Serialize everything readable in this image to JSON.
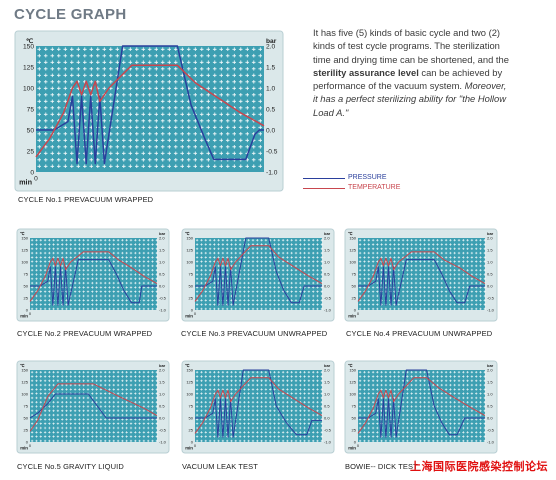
{
  "page": {
    "title": "CYCLE GRAPH",
    "description": [
      {
        "text": "It has five (5) kinds of basic cycle and two (2) kinds of test cycle programs. The sterilization time and drying time can be shortened, and the ",
        "style": "n"
      },
      {
        "text": "sterility assurance level",
        "style": "b"
      },
      {
        "text": " can be achieved by performance of the vacuum system. ",
        "style": "n"
      },
      {
        "text": "Moreover, it has a perfect sterilizing ability for \"the Hollow Load A.\"",
        "style": "i"
      }
    ],
    "watermark": "上海国际医院感染控制论坛"
  },
  "legend": [
    {
      "label": "PRESSURE",
      "color": "#2a3f9c"
    },
    {
      "label": "TEMPERATURE",
      "color": "#c8464e"
    }
  ],
  "chart_data": [
    {
      "type": "line",
      "caption": "CYCLE  No.1 PREVACUUM WRAPPED",
      "y_left_label": "℃",
      "y_right_label": "bar",
      "x_label": "min",
      "x_tick": "0",
      "ylim_left": [
        0,
        150
      ],
      "ylim_right": [
        -1.0,
        2.0
      ],
      "y_left_ticks": [
        0,
        25,
        50,
        75,
        100,
        125,
        150
      ],
      "y_right_ticks": [
        "-1.0",
        "-0.5",
        "0.0",
        "0.5",
        "1.0",
        "1.5",
        "2.0"
      ],
      "grid": true,
      "series": [
        {
          "name": "PRESSURE",
          "axis": "right",
          "x": [
            0,
            8,
            14,
            16,
            18,
            20,
            22,
            24,
            26,
            28,
            30,
            38,
            62,
            68,
            74,
            78,
            82,
            88,
            92,
            96,
            98,
            100
          ],
          "y": [
            0,
            0,
            0.2,
            0.8,
            -0.8,
            0.8,
            -0.8,
            0.8,
            -0.8,
            0.8,
            -0.8,
            2.0,
            2.0,
            0.6,
            -0.2,
            -0.7,
            -0.7,
            -0.7,
            -0.7,
            -0.1,
            0.0,
            0.0
          ]
        },
        {
          "name": "TEMPERATURE",
          "axis": "left",
          "x": [
            0,
            6,
            12,
            16,
            18,
            20,
            22,
            24,
            26,
            28,
            32,
            42,
            62,
            70,
            80,
            90,
            100
          ],
          "y": [
            18,
            40,
            70,
            100,
            108,
            92,
            108,
            92,
            108,
            84,
            100,
            127,
            127,
            106,
            88,
            70,
            55
          ]
        }
      ]
    },
    {
      "type": "line",
      "caption": "CYCLE  No.2 PREVACUUM WRAPPED",
      "y_left_label": "℃",
      "y_right_label": "bar",
      "x_label": "min",
      "x_tick": "0",
      "ylim_left": [
        0,
        150
      ],
      "ylim_right": [
        -1.0,
        2.0
      ],
      "y_left_ticks": [
        0,
        25,
        50,
        75,
        100,
        125,
        150
      ],
      "y_right_ticks": [
        "-1.0",
        "-0.5",
        "0.0",
        "0.5",
        "1.0",
        "1.5",
        "2.0"
      ],
      "grid": true,
      "series": [
        {
          "name": "PRESSURE",
          "axis": "right",
          "x": [
            0,
            8,
            14,
            16,
            18,
            20,
            22,
            24,
            26,
            28,
            30,
            38,
            62,
            68,
            74,
            80,
            86,
            88,
            100
          ],
          "y": [
            0,
            0,
            0.2,
            0.8,
            -0.8,
            0.8,
            -0.8,
            0.8,
            -0.8,
            0.8,
            -0.8,
            1.1,
            1.1,
            0.5,
            -0.2,
            -0.7,
            -0.7,
            0.0,
            0.0
          ]
        },
        {
          "name": "TEMPERATURE",
          "axis": "left",
          "x": [
            0,
            6,
            12,
            16,
            18,
            20,
            22,
            24,
            26,
            28,
            32,
            42,
            62,
            70,
            80,
            90,
            100
          ],
          "y": [
            18,
            40,
            70,
            100,
            108,
            92,
            108,
            92,
            108,
            84,
            100,
            121,
            121,
            104,
            88,
            70,
            55
          ]
        }
      ]
    },
    {
      "type": "line",
      "caption": "CYCLE  No.3 PREVACUUM UNWRAPPED",
      "y_left_label": "℃",
      "y_right_label": "bar",
      "x_label": "min",
      "x_tick": "0",
      "ylim_left": [
        0,
        150
      ],
      "ylim_right": [
        -1.0,
        2.0
      ],
      "y_left_ticks": [
        0,
        25,
        50,
        75,
        100,
        125,
        150
      ],
      "y_right_ticks": [
        "-1.0",
        "-0.5",
        "0.0",
        "0.5",
        "1.0",
        "1.5",
        "2.0"
      ],
      "grid": true,
      "series": [
        {
          "name": "PRESSURE",
          "axis": "right",
          "x": [
            0,
            8,
            14,
            16,
            18,
            20,
            22,
            24,
            26,
            28,
            30,
            40,
            58,
            64,
            70,
            76,
            82,
            86,
            100
          ],
          "y": [
            0,
            0,
            0.2,
            0.8,
            -0.8,
            0.8,
            -0.8,
            0.8,
            -0.8,
            0.8,
            -0.8,
            2.0,
            2.0,
            0.6,
            -0.2,
            -0.7,
            -0.7,
            0.0,
            0.0
          ]
        },
        {
          "name": "TEMPERATURE",
          "axis": "left",
          "x": [
            0,
            6,
            12,
            16,
            18,
            20,
            22,
            24,
            26,
            28,
            32,
            44,
            58,
            66,
            78,
            90,
            100
          ],
          "y": [
            18,
            40,
            70,
            100,
            108,
            92,
            108,
            92,
            108,
            84,
            100,
            134,
            134,
            110,
            90,
            70,
            55
          ]
        }
      ]
    },
    {
      "type": "line",
      "caption": "CYCLE  No.4 PREVACUUM UNWRAPPED",
      "y_left_label": "℃",
      "y_right_label": "bar",
      "x_label": "min",
      "x_tick": "0",
      "ylim_left": [
        0,
        150
      ],
      "ylim_right": [
        -1.0,
        2.0
      ],
      "y_left_ticks": [
        0,
        25,
        50,
        75,
        100,
        125,
        150
      ],
      "y_right_ticks": [
        "-1.0",
        "-0.5",
        "0.0",
        "0.5",
        "1.0",
        "1.5",
        "2.0"
      ],
      "grid": true,
      "series": [
        {
          "name": "PRESSURE",
          "axis": "right",
          "x": [
            0,
            8,
            14,
            16,
            18,
            20,
            22,
            24,
            26,
            28,
            30,
            38,
            60,
            66,
            72,
            78,
            84,
            88,
            100
          ],
          "y": [
            0,
            0,
            0.2,
            0.8,
            -0.8,
            0.8,
            -0.8,
            0.8,
            -0.8,
            0.8,
            -0.8,
            1.1,
            1.1,
            0.5,
            -0.2,
            -0.7,
            -0.7,
            0.0,
            0.0
          ]
        },
        {
          "name": "TEMPERATURE",
          "axis": "left",
          "x": [
            0,
            6,
            12,
            16,
            18,
            20,
            22,
            24,
            26,
            28,
            32,
            42,
            60,
            68,
            80,
            90,
            100
          ],
          "y": [
            18,
            40,
            70,
            100,
            108,
            92,
            108,
            92,
            108,
            84,
            100,
            121,
            121,
            104,
            88,
            70,
            55
          ]
        }
      ]
    },
    {
      "type": "line",
      "caption": "CYCLE  No.5 GRAVITY LIQUID",
      "y_left_label": "℃",
      "y_right_label": "bar",
      "x_label": "min",
      "x_tick": "0",
      "ylim_left": [
        0,
        150
      ],
      "ylim_right": [
        -1.0,
        2.0
      ],
      "y_left_ticks": [
        0,
        25,
        50,
        75,
        100,
        125,
        150
      ],
      "y_right_ticks": [
        "-1.0",
        "-0.5",
        "0.0",
        "0.5",
        "1.0",
        "1.5",
        "2.0"
      ],
      "grid": true,
      "series": [
        {
          "name": "PRESSURE",
          "axis": "right",
          "x": [
            0,
            6,
            14,
            20,
            46,
            60,
            100
          ],
          "y": [
            0,
            0.2,
            0.6,
            1.0,
            1.0,
            0.0,
            0.0
          ]
        },
        {
          "name": "TEMPERATURE",
          "axis": "left",
          "x": [
            0,
            6,
            14,
            22,
            50,
            70,
            90,
            100
          ],
          "y": [
            22,
            45,
            95,
            121,
            121,
            95,
            70,
            55
          ]
        }
      ]
    },
    {
      "type": "line",
      "caption": "VACUUM LEAK TEST",
      "y_left_label": "℃",
      "y_right_label": "bar",
      "x_label": "min",
      "x_tick": "0",
      "ylim_left": [
        0,
        150
      ],
      "ylim_right": [
        -1.0,
        2.0
      ],
      "y_left_ticks": [
        0,
        25,
        50,
        75,
        100,
        125,
        150
      ],
      "y_right_ticks": [
        "-1.0",
        "-0.5",
        "0.0",
        "0.5",
        "1.0",
        "1.5",
        "2.0"
      ],
      "grid": true,
      "series": [
        {
          "name": "PRESSURE",
          "axis": "right",
          "x": [
            0,
            8,
            14,
            16,
            18,
            20,
            22,
            24,
            26,
            28,
            30,
            38,
            58,
            64,
            72,
            80,
            88,
            92,
            100
          ],
          "y": [
            0,
            0,
            0.2,
            0.8,
            -0.8,
            0.8,
            -0.8,
            0.8,
            -0.8,
            0.8,
            -0.8,
            2.0,
            2.0,
            0.5,
            -0.2,
            -0.7,
            -0.7,
            -0.1,
            -0.1
          ]
        },
        {
          "name": "TEMPERATURE",
          "axis": "left",
          "x": [
            0,
            6,
            12,
            16,
            18,
            20,
            22,
            24,
            26,
            28,
            32,
            44,
            58,
            66,
            78,
            90,
            100
          ],
          "y": [
            18,
            40,
            70,
            100,
            108,
            92,
            108,
            92,
            108,
            84,
            100,
            134,
            134,
            110,
            90,
            70,
            55
          ]
        }
      ]
    },
    {
      "type": "line",
      "caption": "BOWIE-- DICK TEST",
      "y_left_label": "℃",
      "y_right_label": "bar",
      "x_label": "min",
      "x_tick": "0",
      "ylim_left": [
        0,
        150
      ],
      "ylim_right": [
        -1.0,
        2.0
      ],
      "y_left_ticks": [
        0,
        25,
        50,
        75,
        100,
        125,
        150
      ],
      "y_right_ticks": [
        "-1.0",
        "-0.5",
        "0.0",
        "0.5",
        "1.0",
        "1.5",
        "2.0"
      ],
      "grid": true,
      "series": [
        {
          "name": "PRESSURE",
          "axis": "right",
          "x": [
            0,
            8,
            14,
            16,
            18,
            20,
            22,
            24,
            26,
            28,
            30,
            38,
            54,
            60,
            66,
            72,
            78,
            84,
            100
          ],
          "y": [
            0,
            0,
            0.2,
            0.8,
            -0.8,
            0.8,
            -0.8,
            0.8,
            -0.8,
            0.8,
            -0.8,
            2.0,
            2.0,
            0.5,
            -0.2,
            -0.7,
            -0.7,
            0.0,
            0.0
          ]
        },
        {
          "name": "TEMPERATURE",
          "axis": "left",
          "x": [
            0,
            6,
            12,
            16,
            18,
            20,
            22,
            24,
            26,
            28,
            32,
            44,
            54,
            64,
            76,
            90,
            100
          ],
          "y": [
            18,
            40,
            70,
            100,
            108,
            92,
            108,
            92,
            108,
            84,
            100,
            134,
            134,
            112,
            92,
            70,
            55
          ]
        }
      ]
    }
  ]
}
